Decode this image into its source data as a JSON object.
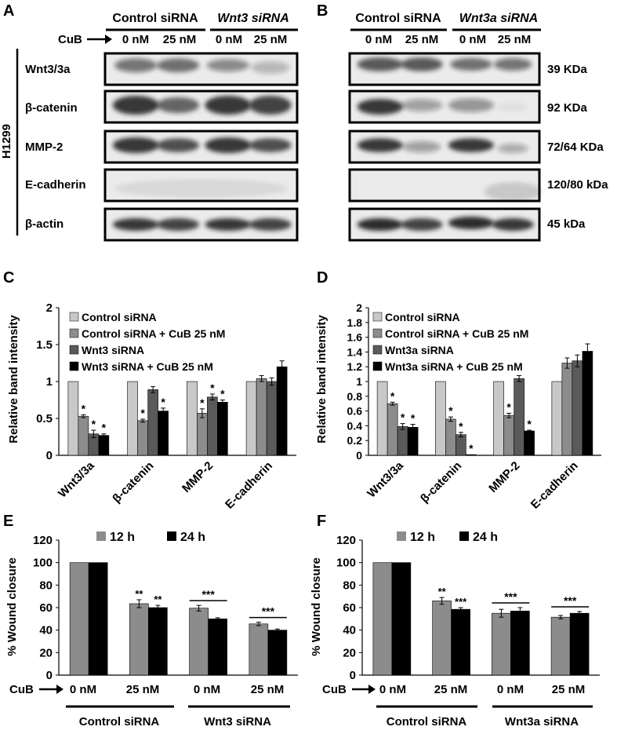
{
  "panels": {
    "A": {
      "letter": "A",
      "group_labels": [
        "Control siRNA",
        "Wnt3 siRNA"
      ],
      "cub_label": "CuB",
      "lanes": [
        "0 nM",
        "25 nM",
        "0 nM",
        "25 nM"
      ],
      "cell_line": "H1299",
      "rows": [
        "Wnt3/3a",
        "β-catenin",
        "MMP-2",
        "E-cadherin",
        "β-actin"
      ]
    },
    "B": {
      "letter": "B",
      "group_labels": [
        "Control siRNA",
        "Wnt3a siRNA"
      ],
      "lanes": [
        "0 nM",
        "25 nM",
        "0 nM",
        "25 nM"
      ],
      "sizes": [
        "39 KDa",
        "92 KDa",
        "72/64 KDa",
        "120/80 kDa",
        "45 kDa"
      ]
    },
    "C": {
      "letter": "C"
    },
    "D": {
      "letter": "D"
    },
    "E": {
      "letter": "E",
      "cub_label": "CuB",
      "x_labels": [
        "0 nM",
        "25 nM",
        "0 nM",
        "25 nM"
      ],
      "groups": [
        "Control siRNA",
        "Wnt3 siRNA"
      ]
    },
    "F": {
      "letter": "F",
      "cub_label": "CuB",
      "x_labels": [
        "0 nM",
        "25 nM",
        "0 nM",
        "25 nM"
      ],
      "groups": [
        "Control siRNA",
        "Wnt3a siRNA"
      ]
    }
  },
  "colors": {
    "light": "#c8c8c8",
    "mid": "#8c8c8c",
    "dark": "#5a5a5a",
    "black": "#000000"
  },
  "chart_data": [
    {
      "id": "C",
      "type": "bar",
      "ylabel": "Relative band intensity",
      "ylim": [
        0,
        2
      ],
      "yticks": [
        0,
        0.5,
        1,
        1.5,
        2
      ],
      "yticklabels": [
        "0",
        "0.5",
        "1",
        "1.5",
        "2"
      ],
      "categories": [
        "Wnt3/3a",
        "β-catenin",
        "MMP-2",
        "E-cadherin"
      ],
      "legend_position": "top-left",
      "series": [
        {
          "name": "Control siRNA",
          "color": "#c8c8c8",
          "values": [
            1.0,
            1.0,
            1.0,
            1.0
          ],
          "errors": [
            0,
            0,
            0,
            0
          ],
          "marks": [
            "",
            "",
            "",
            ""
          ]
        },
        {
          "name": "Control siRNA + CuB 25 nM",
          "color": "#8c8c8c",
          "values": [
            0.53,
            0.47,
            0.57,
            1.04
          ],
          "errors": [
            0.02,
            0.02,
            0.06,
            0.04
          ],
          "marks": [
            "*",
            "*",
            "*",
            ""
          ]
        },
        {
          "name": "Wnt3 siRNA",
          "color": "#5a5a5a",
          "values": [
            0.29,
            0.89,
            0.79,
            1.0
          ],
          "errors": [
            0.05,
            0.04,
            0.04,
            0.05
          ],
          "marks": [
            "*",
            "",
            "*",
            ""
          ]
        },
        {
          "name": "Wnt3 siRNA + CuB 25 nM",
          "color": "#000000",
          "values": [
            0.27,
            0.6,
            0.72,
            1.2
          ],
          "errors": [
            0.02,
            0.04,
            0.03,
            0.08
          ],
          "marks": [
            "*",
            "*",
            "*",
            ""
          ]
        }
      ]
    },
    {
      "id": "D",
      "type": "bar",
      "ylabel": "Relative band intensity",
      "ylim": [
        0,
        2
      ],
      "yticks": [
        0,
        0.2,
        0.4,
        0.6,
        0.8,
        1,
        1.2,
        1.4,
        1.6,
        1.8,
        2
      ],
      "yticklabels": [
        "0",
        "0.2",
        "0.4",
        "0.6",
        "0.8",
        "1",
        "1.2",
        "1.4",
        "1.6",
        "1.8",
        "2"
      ],
      "categories": [
        "Wnt3/3a",
        "β-catenin",
        "MMP-2",
        "E-cadherin"
      ],
      "legend_position": "top-left",
      "series": [
        {
          "name": "Control siRNA",
          "color": "#c8c8c8",
          "values": [
            1.0,
            1.0,
            1.0,
            1.0
          ],
          "errors": [
            0,
            0,
            0,
            0
          ],
          "marks": [
            "",
            "",
            "",
            ""
          ]
        },
        {
          "name": "Control siRNA + CuB 25 nM",
          "color": "#8c8c8c",
          "values": [
            0.7,
            0.49,
            0.54,
            1.25
          ],
          "errors": [
            0.02,
            0.03,
            0.03,
            0.07
          ],
          "marks": [
            "*",
            "*",
            "*",
            ""
          ]
        },
        {
          "name": "Wnt3a siRNA",
          "color": "#5a5a5a",
          "values": [
            0.39,
            0.28,
            1.04,
            1.28
          ],
          "errors": [
            0.04,
            0.03,
            0.04,
            0.08
          ],
          "marks": [
            "*",
            "*",
            "",
            ""
          ]
        },
        {
          "name": "Wnt3a siRNA + CuB 25 nM",
          "color": "#000000",
          "values": [
            0.38,
            0.01,
            0.33,
            1.41
          ],
          "errors": [
            0.04,
            0.0,
            0.01,
            0.1
          ],
          "marks": [
            "*",
            "*",
            "*",
            ""
          ]
        }
      ]
    },
    {
      "id": "E",
      "type": "bar",
      "ylabel": "% Wound closure",
      "ylim": [
        0,
        120
      ],
      "yticks": [
        0,
        20,
        40,
        60,
        80,
        100,
        120
      ],
      "yticklabels": [
        "0",
        "20",
        "40",
        "60",
        "80",
        "100",
        "120"
      ],
      "categories": [
        "0 nM",
        "25 nM",
        "0 nM",
        "25 nM"
      ],
      "legend_position": "top",
      "series": [
        {
          "name": "12 h",
          "color": "#8c8c8c",
          "values": [
            100,
            63.5,
            59.5,
            45.5
          ],
          "errors": [
            0,
            3.5,
            2.5,
            1.5
          ],
          "marks": [
            "",
            "**",
            "",
            ""
          ]
        },
        {
          "name": "24 h",
          "color": "#000000",
          "values": [
            100,
            60,
            50,
            40
          ],
          "errors": [
            0,
            2,
            1,
            1
          ],
          "marks": [
            "",
            "**",
            "",
            ""
          ]
        }
      ],
      "group_marks": [
        "",
        "",
        "***",
        "***"
      ]
    },
    {
      "id": "F",
      "type": "bar",
      "ylabel": "% Wound closure",
      "ylim": [
        0,
        120
      ],
      "yticks": [
        0,
        20,
        40,
        60,
        80,
        100,
        120
      ],
      "yticklabels": [
        "0",
        "20",
        "40",
        "60",
        "80",
        "100",
        "120"
      ],
      "categories": [
        "0 nM",
        "25 nM",
        "0 nM",
        "25 nM"
      ],
      "legend_position": "top",
      "series": [
        {
          "name": "12 h",
          "color": "#8c8c8c",
          "values": [
            100,
            66,
            55,
            51.5
          ],
          "errors": [
            0,
            3,
            3.5,
            1.5
          ],
          "marks": [
            "",
            "**",
            "",
            ""
          ]
        },
        {
          "name": "24 h",
          "color": "#000000",
          "values": [
            100,
            58.5,
            57,
            55
          ],
          "errors": [
            0,
            1.5,
            3,
            1.5
          ],
          "marks": [
            "",
            "***",
            "",
            ""
          ]
        }
      ],
      "group_marks": [
        "",
        "",
        "***",
        "***"
      ]
    }
  ]
}
